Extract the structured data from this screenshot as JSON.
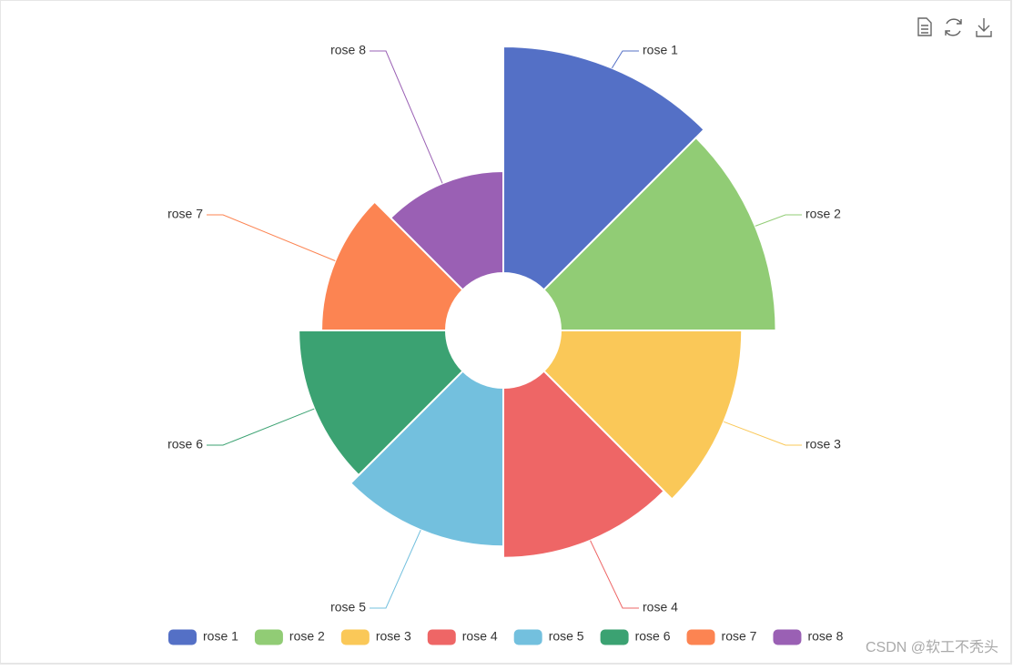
{
  "chart_data": {
    "type": "pie",
    "rose": true,
    "categories": [
      "rose 1",
      "rose 2",
      "rose 3",
      "rose 4",
      "rose 5",
      "rose 6",
      "rose 7",
      "rose 8"
    ],
    "values": [
      40,
      38,
      32,
      30,
      28,
      26,
      22,
      18
    ],
    "colors": [
      "#5470c6",
      "#91cc75",
      "#fac858",
      "#ee6666",
      "#73c0de",
      "#3ba272",
      "#fc8452",
      "#9a60b4"
    ],
    "legend": "bottom",
    "watermark": "CSDN @软工不秃头"
  }
}
